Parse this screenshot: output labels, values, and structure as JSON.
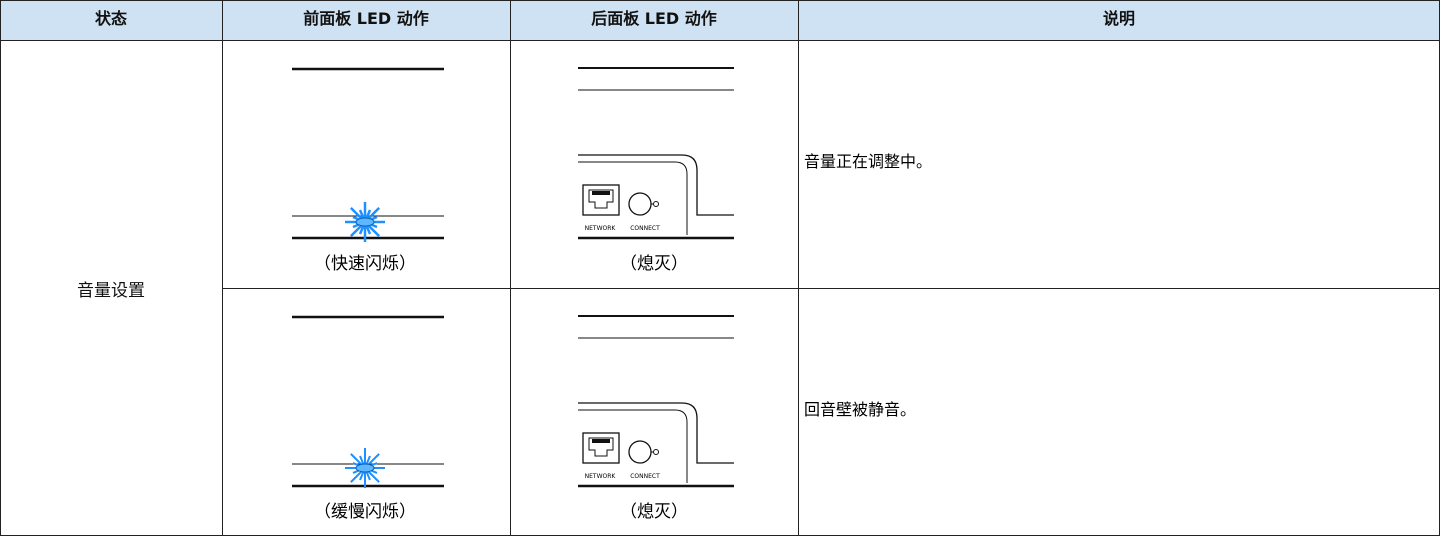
{
  "table": {
    "headers": [
      "状态",
      "前面板 LED 动作",
      "后面板 LED 动作",
      "说明"
    ],
    "group": "音量设置",
    "rows": [
      [
        "（快速闪烁）",
        "（熄灭）",
        "音量正在调整中。"
      ],
      [
        "（缓慢闪烁）",
        "（熄灭）",
        "回音壁被静音。"
      ]
    ],
    "rear_panel_labels": [
      "NETWORK",
      "CONNECT"
    ]
  }
}
